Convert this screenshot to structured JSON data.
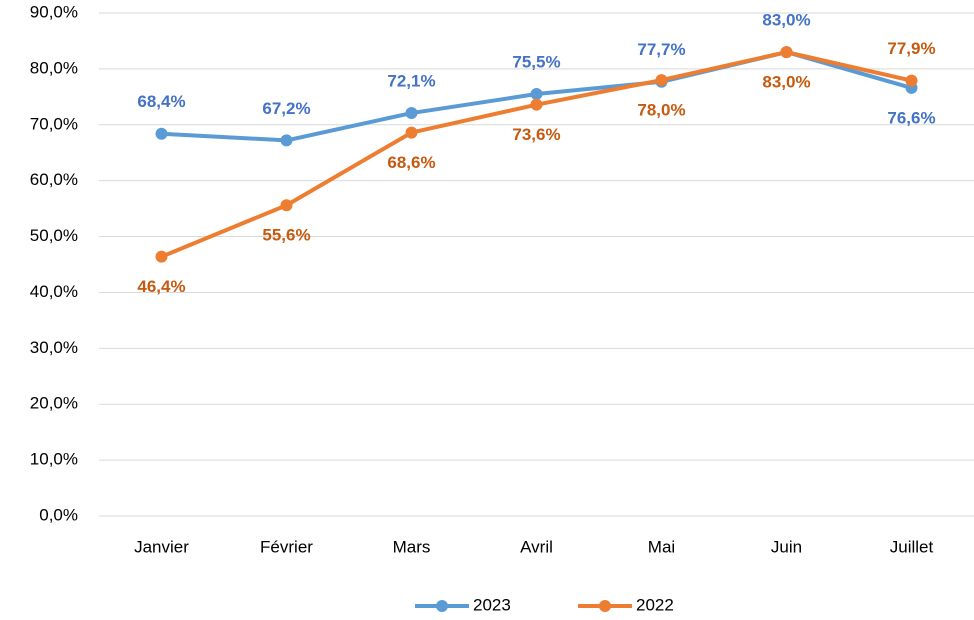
{
  "chart_data": {
    "type": "line",
    "categories": [
      "Janvier",
      "Février",
      "Mars",
      "Avril",
      "Mai",
      "Juin",
      "Juillet"
    ],
    "series": [
      {
        "name": "2023",
        "color": "#5b9bd5",
        "label_color": "#4472c4",
        "values": [
          68.4,
          67.2,
          72.1,
          75.5,
          77.7,
          83.0,
          76.6
        ],
        "value_labels": [
          "68,4%",
          "67,2%",
          "72,1%",
          "75,5%",
          "77,7%",
          "83,0%",
          "76,6%"
        ]
      },
      {
        "name": "2022",
        "color": "#ed7d31",
        "label_color": "#c55a11",
        "values": [
          46.4,
          55.6,
          68.6,
          73.6,
          78.0,
          83.0,
          77.9
        ],
        "value_labels": [
          "46,4%",
          "55,6%",
          "68,6%",
          "73,6%",
          "78,0%",
          "83,0%",
          "77,9%"
        ]
      }
    ],
    "ylim": [
      0,
      90
    ],
    "yticks": [
      {
        "value": 0,
        "label": "0,0%"
      },
      {
        "value": 10,
        "label": "10,0%"
      },
      {
        "value": 20,
        "label": "20,0%"
      },
      {
        "value": 30,
        "label": "30,0%"
      },
      {
        "value": 40,
        "label": "40,0%"
      },
      {
        "value": 50,
        "label": "50,0%"
      },
      {
        "value": 60,
        "label": "60,0%"
      },
      {
        "value": 70,
        "label": "70,0%"
      },
      {
        "value": 80,
        "label": "80,0%"
      },
      {
        "value": 90,
        "label": "90,0%"
      }
    ],
    "grid": true,
    "legend": "bottom"
  }
}
